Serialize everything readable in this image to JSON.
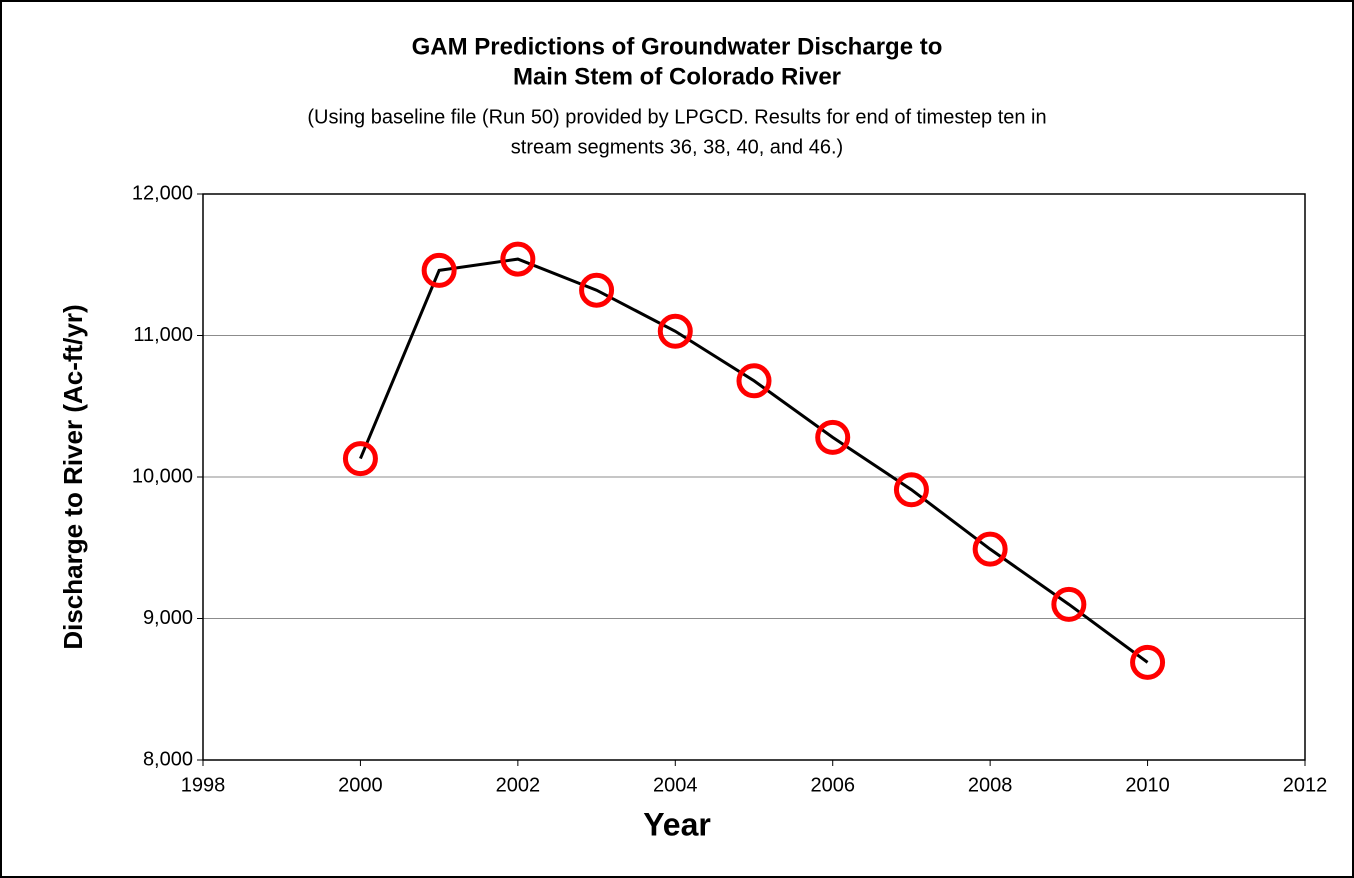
{
  "chart_data": {
    "type": "line",
    "title": [
      "GAM Predictions of Groundwater Discharge to",
      "Main Stem of Colorado River"
    ],
    "subtitle": [
      "(Using baseline file (Run 50) provided by LPGCD. Results for end of timestep ten in",
      "stream segments 36, 38, 40, and 46.)"
    ],
    "x_label": "Year",
    "y_label": "Discharge to River (Ac-ft/yr)",
    "x": [
      2000,
      2001,
      2002,
      2003,
      2004,
      2005,
      2006,
      2007,
      2008,
      2009,
      2010
    ],
    "series": [
      {
        "color": "#000000",
        "marker_color": "#ff0000",
        "values": [
          10130,
          11460,
          11540,
          11320,
          11030,
          10680,
          10280,
          9910,
          9490,
          9100,
          8690
        ]
      }
    ],
    "xlim": [
      1998,
      2012
    ],
    "xticks": [
      1998,
      2000,
      2002,
      2004,
      2006,
      2008,
      2010,
      2012
    ],
    "ylim": [
      8000,
      12000
    ],
    "yticks": [
      {
        "value": 8000,
        "label": "8,000"
      },
      {
        "value": 9000,
        "label": "9,000"
      },
      {
        "value": 10000,
        "label": "10,000"
      },
      {
        "value": 11000,
        "label": "11,000"
      },
      {
        "value": 12000,
        "label": "12,000"
      }
    ],
    "grid": true
  }
}
